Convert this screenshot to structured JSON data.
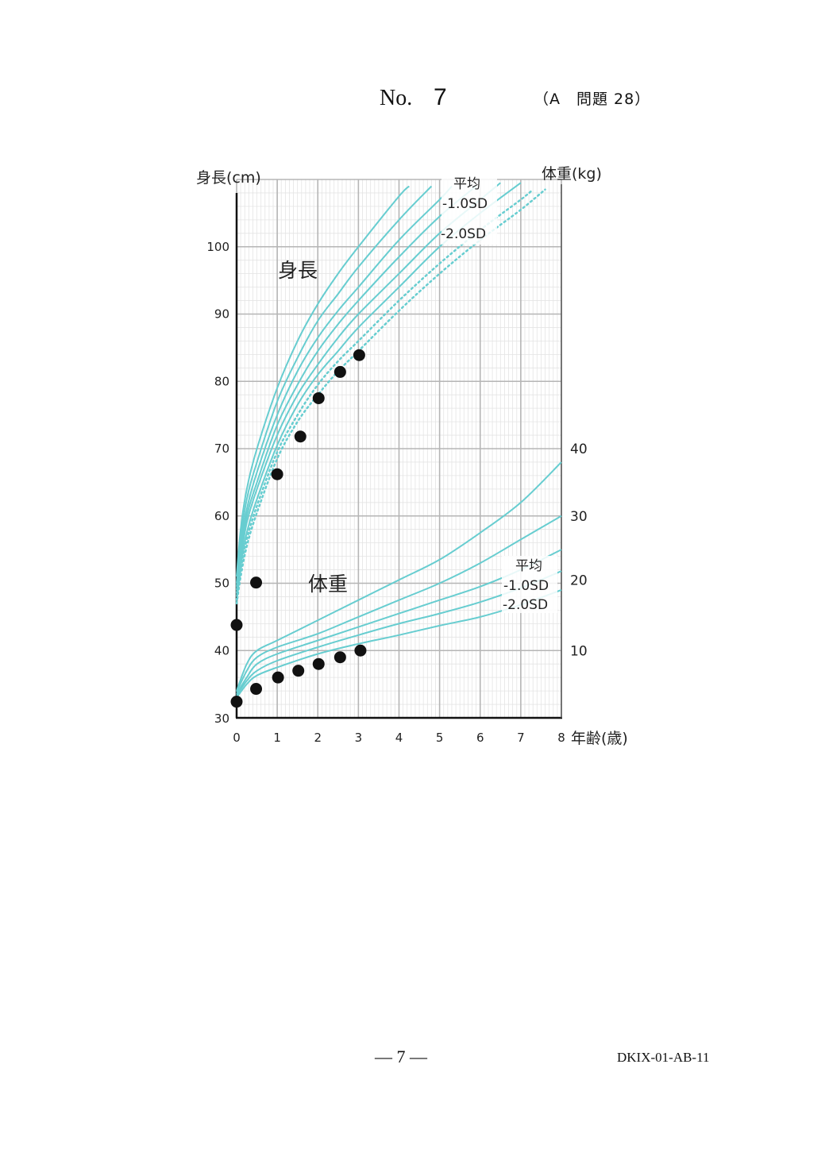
{
  "header": {
    "no_label": "No.",
    "no_value": "7",
    "question_ref": "（A　問題 28）"
  },
  "footer": {
    "page": "— 7 —",
    "code": "DKIX-01-AB-11"
  },
  "chart_data": {
    "type": "line",
    "x_axis": {
      "label": "年齢(歳)",
      "range": [
        0,
        8
      ],
      "ticks": [
        "0",
        "1",
        "2",
        "3",
        "4",
        "5",
        "6",
        "7",
        "8"
      ]
    },
    "y_axis_left": {
      "label": "身長(cm)",
      "range": [
        30,
        110
      ],
      "ticks": [
        "30",
        "40",
        "50",
        "60",
        "70",
        "80",
        "90",
        "100"
      ]
    },
    "y_axis_right": {
      "label": "体重(kg)",
      "ticks": [
        {
          "text": "10",
          "at_left_value": 40
        },
        {
          "text": "20",
          "at_left_value": 50.5
        },
        {
          "text": "30",
          "at_left_value": 60
        },
        {
          "text": "40",
          "at_left_value": 70
        }
      ]
    },
    "grid": true,
    "annotations": {
      "height_group": "身長",
      "weight_group": "体重",
      "height_mean": "平均",
      "height_minus1": "-1.0SD",
      "height_minus2": "-2.0SD",
      "weight_mean": "平均",
      "weight_minus1": "-1.0SD",
      "weight_minus2": "-2.0SD"
    },
    "line_color": "#67cdd0",
    "point_color": "#111111",
    "height_curves": [
      {
        "style": "solid",
        "points": [
          [
            0,
            51
          ],
          [
            0.1,
            58
          ],
          [
            0.25,
            64
          ],
          [
            0.5,
            70
          ],
          [
            1,
            79
          ],
          [
            1.5,
            86
          ],
          [
            2,
            91.5
          ],
          [
            2.5,
            96
          ],
          [
            3,
            100
          ],
          [
            4,
            107.5
          ],
          [
            4.25,
            109
          ]
        ]
      },
      {
        "style": "solid",
        "points": [
          [
            0,
            50
          ],
          [
            0.1,
            56.5
          ],
          [
            0.25,
            62.5
          ],
          [
            0.5,
            68
          ],
          [
            1,
            77
          ],
          [
            1.5,
            83.5
          ],
          [
            2,
            89
          ],
          [
            2.5,
            93
          ],
          [
            3,
            97
          ],
          [
            4,
            104
          ],
          [
            4.8,
            109
          ]
        ]
      },
      {
        "style": "solid",
        "points": [
          [
            0,
            49.5
          ],
          [
            0.1,
            55.5
          ],
          [
            0.25,
            61
          ],
          [
            0.5,
            66.5
          ],
          [
            1,
            75
          ],
          [
            1.5,
            81.5
          ],
          [
            2,
            86.5
          ],
          [
            2.5,
            90.5
          ],
          [
            3,
            94
          ],
          [
            4,
            101
          ],
          [
            5,
            107
          ],
          [
            5.3,
            109
          ]
        ]
      },
      {
        "style": "solid",
        "points": [
          [
            0,
            49
          ],
          [
            0.1,
            54.5
          ],
          [
            0.25,
            60
          ],
          [
            0.5,
            65
          ],
          [
            1,
            73.5
          ],
          [
            1.5,
            79.5
          ],
          [
            2,
            84.5
          ],
          [
            2.5,
            88.5
          ],
          [
            3,
            92
          ],
          [
            4,
            98.5
          ],
          [
            5,
            104.5
          ],
          [
            5.9,
            109
          ]
        ]
      },
      {
        "style": "solid",
        "points": [
          [
            0,
            48.5
          ],
          [
            0.1,
            53.5
          ],
          [
            0.25,
            59
          ],
          [
            0.5,
            64
          ],
          [
            1,
            72
          ],
          [
            1.5,
            78
          ],
          [
            2,
            82.5
          ],
          [
            2.5,
            86.5
          ],
          [
            3,
            90
          ],
          [
            4,
            96
          ],
          [
            5,
            102
          ],
          [
            6,
            107
          ],
          [
            6.5,
            109.5
          ]
        ]
      },
      {
        "style": "solid",
        "points": [
          [
            0,
            48
          ],
          [
            0.1,
            52.5
          ],
          [
            0.25,
            57.5
          ],
          [
            0.5,
            62.5
          ],
          [
            1,
            70.5
          ],
          [
            1.5,
            76.5
          ],
          [
            2,
            81
          ],
          [
            2.5,
            84.5
          ],
          [
            3,
            88
          ],
          [
            4,
            94
          ],
          [
            5,
            100
          ],
          [
            6,
            105
          ],
          [
            7,
            109.5
          ]
        ]
      },
      {
        "style": "dotted",
        "points": [
          [
            0,
            47.5
          ],
          [
            0.1,
            52
          ],
          [
            0.25,
            56.5
          ],
          [
            0.5,
            61.5
          ],
          [
            1,
            69.5
          ],
          [
            1.5,
            75
          ],
          [
            2,
            79.5
          ],
          [
            2.5,
            83
          ],
          [
            3,
            86
          ],
          [
            4,
            92
          ],
          [
            5,
            97.5
          ],
          [
            6,
            102.5
          ],
          [
            7,
            107
          ],
          [
            7.3,
            108.5
          ]
        ]
      },
      {
        "style": "dotted",
        "points": [
          [
            0,
            47
          ],
          [
            0.1,
            51
          ],
          [
            0.25,
            55.5
          ],
          [
            0.5,
            60.5
          ],
          [
            1,
            68.5
          ],
          [
            1.5,
            74
          ],
          [
            2,
            78
          ],
          [
            2.5,
            81.5
          ],
          [
            3,
            84.5
          ],
          [
            4,
            90.5
          ],
          [
            5,
            96
          ],
          [
            6,
            101
          ],
          [
            7,
            105.5
          ],
          [
            7.6,
            108.5
          ]
        ]
      }
    ],
    "weight_curves": [
      {
        "style": "solid",
        "points": [
          [
            0,
            34
          ],
          [
            0.25,
            38
          ],
          [
            0.5,
            40
          ],
          [
            1,
            41.5
          ],
          [
            2,
            44.5
          ],
          [
            3,
            47.5
          ],
          [
            4,
            50.5
          ],
          [
            5,
            53.5
          ],
          [
            6,
            57.5
          ],
          [
            7,
            62
          ],
          [
            8,
            68
          ]
        ]
      },
      {
        "style": "solid",
        "points": [
          [
            0,
            33.8
          ],
          [
            0.25,
            37
          ],
          [
            0.5,
            39
          ],
          [
            1,
            40.5
          ],
          [
            2,
            42.5
          ],
          [
            3,
            45
          ],
          [
            4,
            47.5
          ],
          [
            5,
            50
          ],
          [
            6,
            53
          ],
          [
            7,
            56.5
          ],
          [
            8,
            60
          ]
        ]
      },
      {
        "style": "solid",
        "points": [
          [
            0,
            33.5
          ],
          [
            0.25,
            36
          ],
          [
            0.5,
            38
          ],
          [
            1,
            39.5
          ],
          [
            2,
            41.5
          ],
          [
            3,
            43.5
          ],
          [
            4,
            45.5
          ],
          [
            5,
            47.5
          ],
          [
            6,
            49.5
          ],
          [
            7,
            52
          ],
          [
            8,
            55
          ]
        ]
      },
      {
        "style": "solid",
        "points": [
          [
            0,
            33.3
          ],
          [
            0.25,
            35.5
          ],
          [
            0.5,
            37
          ],
          [
            1,
            38.5
          ],
          [
            2,
            40.5
          ],
          [
            3,
            42.3
          ],
          [
            4,
            44
          ],
          [
            5,
            45.5
          ],
          [
            6,
            47.2
          ],
          [
            7,
            49.3
          ],
          [
            8,
            51.8
          ]
        ]
      },
      {
        "style": "solid",
        "points": [
          [
            0,
            33
          ],
          [
            0.25,
            35
          ],
          [
            0.5,
            36.3
          ],
          [
            1,
            37.5
          ],
          [
            2,
            39.5
          ],
          [
            3,
            41
          ],
          [
            4,
            42.3
          ],
          [
            5,
            43.7
          ],
          [
            6,
            45
          ],
          [
            7,
            46.8
          ],
          [
            8,
            49
          ]
        ]
      }
    ],
    "height_points": [
      [
        0,
        43.8
      ],
      [
        0.48,
        50.1
      ],
      [
        1,
        66.2
      ],
      [
        1.57,
        71.8
      ],
      [
        2.02,
        77.5
      ],
      [
        2.55,
        81.4
      ],
      [
        3.02,
        83.9
      ]
    ],
    "weight_points": [
      [
        0,
        32.4
      ],
      [
        0.48,
        34.3
      ],
      [
        1.02,
        36
      ],
      [
        1.52,
        37
      ],
      [
        2.02,
        38
      ],
      [
        2.55,
        39
      ],
      [
        3.05,
        40
      ]
    ]
  }
}
